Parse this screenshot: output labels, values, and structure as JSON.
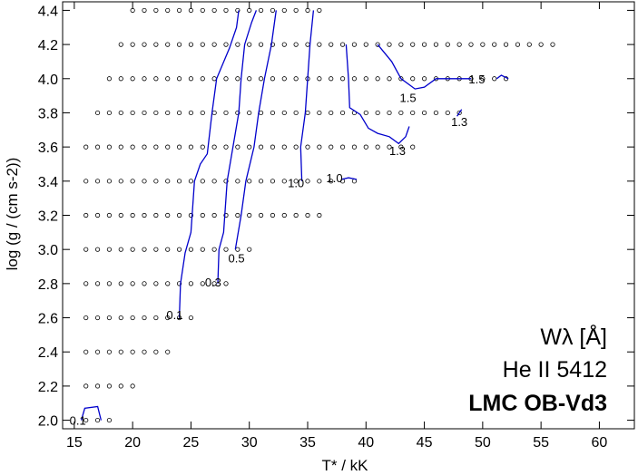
{
  "chart_data": {
    "type": "scatter",
    "title": "",
    "xlabel": "T* / kK",
    "ylabel": "log (g / (cm s-2))",
    "xlim": [
      14,
      63
    ],
    "ylim": [
      1.95,
      4.45
    ],
    "x_ticks": [
      15,
      20,
      25,
      30,
      35,
      40,
      45,
      50,
      55,
      60
    ],
    "y_ticks": [
      2.0,
      2.2,
      2.4,
      2.6,
      2.8,
      3.0,
      3.2,
      3.4,
      3.6,
      3.8,
      4.0,
      4.2,
      4.4
    ],
    "x_tick_labels": [
      "15",
      "20",
      "25",
      "30",
      "35",
      "40",
      "45",
      "50",
      "55",
      "60"
    ],
    "y_tick_labels": [
      "2.0",
      "2.2",
      "2.4",
      "2.6",
      "2.8",
      "3.0",
      "3.2",
      "3.4",
      "3.6",
      "3.8",
      "4.0",
      "4.2",
      "4.4"
    ],
    "grid": false,
    "annotation": {
      "line1": "Wλ  [Å]",
      "line2": "He II 5412",
      "line3": "LMC OB-Vd3"
    },
    "model_grid_rows": [
      {
        "logg": 4.4,
        "teff_min": 20,
        "teff_max": 36
      },
      {
        "logg": 4.2,
        "teff_min": 19,
        "teff_max": 56
      },
      {
        "logg": 4.0,
        "teff_min": 18,
        "teff_max": 52
      },
      {
        "logg": 3.8,
        "teff_min": 17,
        "teff_max": 48
      },
      {
        "logg": 3.6,
        "teff_min": 16,
        "teff_max": 44
      },
      {
        "logg": 3.4,
        "teff_min": 16,
        "teff_max": 39
      },
      {
        "logg": 3.2,
        "teff_min": 16,
        "teff_max": 36
      },
      {
        "logg": 3.0,
        "teff_min": 16,
        "teff_max": 30
      },
      {
        "logg": 2.8,
        "teff_min": 16,
        "teff_max": 28
      },
      {
        "logg": 2.6,
        "teff_min": 16,
        "teff_max": 25
      },
      {
        "logg": 2.4,
        "teff_min": 16,
        "teff_max": 23
      },
      {
        "logg": 2.2,
        "teff_min": 16,
        "teff_max": 20
      },
      {
        "logg": 2.0,
        "teff_min": 16,
        "teff_max": 18
      }
    ],
    "series": [
      {
        "name": "0.1",
        "color": "#0000cc",
        "points": [
          [
            15.6,
            2.0
          ],
          [
            15.9,
            2.07
          ],
          [
            17.0,
            2.08
          ],
          [
            17.3,
            2.0
          ]
        ]
      },
      {
        "name": "0.1",
        "color": "#0000cc",
        "points": [
          [
            24.0,
            2.6
          ],
          [
            24.1,
            2.8
          ],
          [
            24.5,
            2.98
          ],
          [
            25.0,
            3.1
          ],
          [
            25.1,
            3.2
          ],
          [
            25.3,
            3.4
          ],
          [
            25.8,
            3.5
          ],
          [
            26.4,
            3.56
          ],
          [
            26.8,
            3.8
          ],
          [
            27.2,
            4.0
          ],
          [
            28.3,
            4.18
          ],
          [
            28.9,
            4.3
          ],
          [
            29.1,
            4.4
          ]
        ]
      },
      {
        "name": "0.3",
        "color": "#0000cc",
        "points": [
          [
            27.3,
            2.8
          ],
          [
            27.4,
            3.0
          ],
          [
            27.8,
            3.1
          ],
          [
            28.1,
            3.4
          ],
          [
            28.6,
            3.6
          ],
          [
            29.1,
            3.8
          ],
          [
            29.3,
            4.0
          ],
          [
            29.6,
            4.2
          ],
          [
            30.2,
            4.33
          ],
          [
            30.6,
            4.4
          ]
        ]
      },
      {
        "name": "0.5",
        "color": "#0000cc",
        "points": [
          [
            28.8,
            3.0
          ],
          [
            29.3,
            3.2
          ],
          [
            29.7,
            3.4
          ],
          [
            30.4,
            3.6
          ],
          [
            30.8,
            3.8
          ],
          [
            31.3,
            4.0
          ],
          [
            31.9,
            4.2
          ],
          [
            32.3,
            4.4
          ]
        ]
      },
      {
        "name": "1.0",
        "color": "#0000cc",
        "points": [
          [
            34.5,
            3.4
          ],
          [
            34.4,
            3.6
          ],
          [
            34.8,
            3.8
          ],
          [
            35.0,
            4.0
          ],
          [
            35.2,
            4.2
          ],
          [
            35.5,
            4.4
          ]
        ]
      },
      {
        "name": "1.0",
        "color": "#0000cc",
        "points": [
          [
            37.9,
            3.41
          ],
          [
            38.5,
            3.42
          ],
          [
            39.2,
            3.41
          ]
        ]
      },
      {
        "name": "1.3",
        "color": "#0000cc",
        "points": [
          [
            38.3,
            4.2
          ],
          [
            38.5,
            4.0
          ],
          [
            38.6,
            3.83
          ],
          [
            39.5,
            3.79
          ],
          [
            40.2,
            3.71
          ],
          [
            41.0,
            3.68
          ],
          [
            42.0,
            3.66
          ],
          [
            42.8,
            3.62
          ],
          [
            43.4,
            3.66
          ],
          [
            43.7,
            3.72
          ]
        ]
      },
      {
        "name": "1.3",
        "color": "#0000cc",
        "points": [
          [
            47.8,
            3.78
          ],
          [
            48.2,
            3.82
          ]
        ]
      },
      {
        "name": "1.5",
        "color": "#0000cc",
        "points": [
          [
            41.0,
            4.2
          ],
          [
            42.2,
            4.1
          ],
          [
            43.0,
            4.0
          ],
          [
            44.2,
            3.94
          ],
          [
            45.0,
            3.95
          ],
          [
            46.0,
            4.0
          ],
          [
            47.0,
            4.0
          ],
          [
            48.0,
            4.0
          ],
          [
            49.0,
            4.0
          ]
        ]
      },
      {
        "name": "1.5",
        "color": "#0000cc",
        "points": [
          [
            51.2,
            4.0
          ],
          [
            51.6,
            4.02
          ],
          [
            52.2,
            4.0
          ]
        ]
      }
    ],
    "contour_labels": [
      {
        "text": "0.1",
        "x": 15.3,
        "y": 2.0
      },
      {
        "text": "0.1",
        "x": 23.6,
        "y": 2.62
      },
      {
        "text": "0.3",
        "x": 26.9,
        "y": 2.81
      },
      {
        "text": "0.5",
        "x": 28.9,
        "y": 2.95
      },
      {
        "text": "1.0",
        "x": 34.0,
        "y": 3.39
      },
      {
        "text": "1.0",
        "x": 37.3,
        "y": 3.42
      },
      {
        "text": "1.5",
        "x": 43.6,
        "y": 3.89
      },
      {
        "text": "1.3",
        "x": 48.0,
        "y": 3.75
      },
      {
        "text": "1.3",
        "x": 42.7,
        "y": 3.58
      },
      {
        "text": "1.5",
        "x": 49.5,
        "y": 4.0
      }
    ]
  }
}
